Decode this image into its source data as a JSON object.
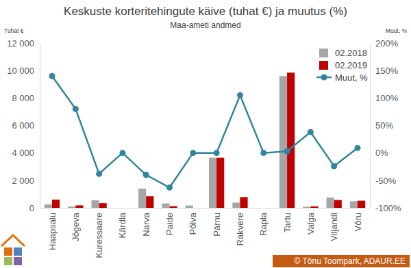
{
  "chart_data": {
    "type": "bar",
    "title": "Keskuste korteritehingute käive (tuhat €) ja muutus (%)",
    "subtitle": "Maa-ameti andmed",
    "y_label": "Tuhat €",
    "y2_label": "Muut, %",
    "annotations": [
      "© Tõnu Toompark, ADAUR.EE"
    ],
    "categories": [
      "Haapsalu",
      "Jõgeva",
      "Kuressaare",
      "Kärdla",
      "Narva",
      "Paide",
      "Põlva",
      "Pärnu",
      "Rakvere",
      "Rapla",
      "Tartu",
      "Valga",
      "Viljandi",
      "Võru"
    ],
    "series": [
      {
        "name": "02.2018",
        "type": "bar",
        "color": "#a6a6a6",
        "values": [
          250,
          100,
          550,
          0,
          1400,
          320,
          170,
          3650,
          380,
          0,
          9600,
          80,
          750,
          480
        ]
      },
      {
        "name": "02.2019",
        "type": "bar",
        "color": "#c00000",
        "values": [
          600,
          180,
          340,
          0,
          840,
          120,
          0,
          3650,
          780,
          0,
          9850,
          110,
          570,
          520
        ]
      },
      {
        "name": "Muut, %",
        "type": "line",
        "axis": "y2",
        "color": "#31859c",
        "marker": "circle",
        "values": [
          140,
          80,
          -38,
          0,
          -40,
          -63,
          0,
          0,
          105,
          0,
          3,
          38,
          -24,
          9
        ]
      }
    ],
    "ylim": [
      0,
      12000
    ],
    "yticks": [
      0,
      {
        "value": 2000,
        "label": "2 000"
      },
      {
        "value": 4000,
        "label": "4 000"
      },
      {
        "value": 6000,
        "label": "6 000"
      },
      {
        "value": 8000,
        "label": "8 000"
      },
      {
        "value": 10000,
        "label": "10 000"
      },
      {
        "value": 12000,
        "label": "12 000"
      }
    ],
    "y2lim": [
      -100,
      200
    ],
    "y2ticks": [
      {
        "value": -100,
        "label": "-100%"
      },
      {
        "value": -50,
        "label": "-50%"
      },
      {
        "value": 0,
        "label": "0%"
      },
      {
        "value": 50,
        "label": "50%"
      },
      {
        "value": 100,
        "label": "100%"
      },
      {
        "value": 150,
        "label": "150%"
      },
      {
        "value": 200,
        "label": "200%"
      }
    ],
    "legend": "top-right",
    "grid": false
  }
}
